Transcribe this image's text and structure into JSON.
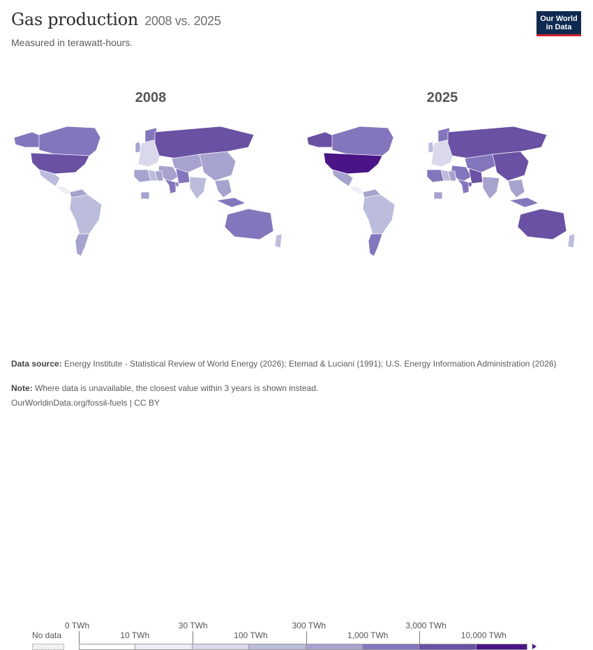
{
  "header": {
    "title": "Gas production",
    "title_years": "2008 vs. 2025",
    "subtitle": "Measured in terawatt-hours.",
    "logo_line1": "Our World",
    "logo_line2": "in Data"
  },
  "maps": [
    {
      "year": "2008",
      "colors": {
        "na": "#8476bd",
        "usa": "#6a51a3",
        "alaska": "#8476bd",
        "mexico": "#bcbcdc",
        "ca": "#eeeef6",
        "sa": "#bcbcdc",
        "ven": "#a7a3cf",
        "arg": "#a7a3cf",
        "europe": "#dad9eb",
        "norway": "#8476bd",
        "uk": "#a7a3cf",
        "neth": "#a7a3cf",
        "africa": "#ffffff",
        "algeria": "#a7a3cf",
        "egypt": "#a7a3cf",
        "nigeria": "#a7a3cf",
        "libya": "#bcbcdc",
        "russia": "#6a51a3",
        "central_asia": "#a7a3cf",
        "mideast": "#a7a3cf",
        "iran": "#8476bd",
        "saudi": "#8476bd",
        "qatar": "#8476bd",
        "china": "#a7a3cf",
        "india": "#bcbcdc",
        "sea": "#a7a3cf",
        "indonesia": "#8476bd",
        "australia": "#8476bd",
        "greenland": "#ffffff",
        "nz": "#bcbcdc"
      }
    },
    {
      "year": "2025",
      "colors": {
        "na": "#8476bd",
        "usa": "#4a1486",
        "alaska": "#6a51a3",
        "mexico": "#a7a3cf",
        "ca": "#eeeef6",
        "sa": "#bcbcdc",
        "ven": "#a7a3cf",
        "arg": "#8476bd",
        "europe": "#dad9eb",
        "norway": "#8476bd",
        "uk": "#bcbcdc",
        "neth": "#bcbcdc",
        "africa": "#ffffff",
        "algeria": "#8476bd",
        "egypt": "#a7a3cf",
        "nigeria": "#a7a3cf",
        "libya": "#bcbcdc",
        "russia": "#6a51a3",
        "central_asia": "#8476bd",
        "mideast": "#8476bd",
        "iran": "#6a51a3",
        "saudi": "#8476bd",
        "qatar": "#6a51a3",
        "china": "#6a51a3",
        "india": "#a7a3cf",
        "sea": "#a7a3cf",
        "indonesia": "#8476bd",
        "australia": "#6a51a3",
        "greenland": "#ffffff",
        "nz": "#bcbcdc"
      }
    }
  ],
  "legend": {
    "no_data_label": "No data",
    "upper_ticks": [
      "0 TWh",
      "30 TWh",
      "300 TWh",
      "3,000 TWh"
    ],
    "lower_ticks": [
      "10 TWh",
      "100 TWh",
      "1,000 TWh",
      "10,000 TWh"
    ],
    "bin_colors": [
      "#ffffff",
      "#eeeef6",
      "#dad9eb",
      "#bcbcdc",
      "#a7a3cf",
      "#8476bd",
      "#6a51a3",
      "#4a1486"
    ]
  },
  "footer": {
    "source_label": "Data source:",
    "source_text": "Energy Institute - Statistical Review of World Energy (2026); Etemad & Luciani (1991); U.S. Energy Information Administration (2026)",
    "note_label": "Note:",
    "note_text": "Where data is unavailable, the closest value within 3 years is shown instead.",
    "url": "OurWorldinData.org/fossil-fuels | CC BY"
  }
}
